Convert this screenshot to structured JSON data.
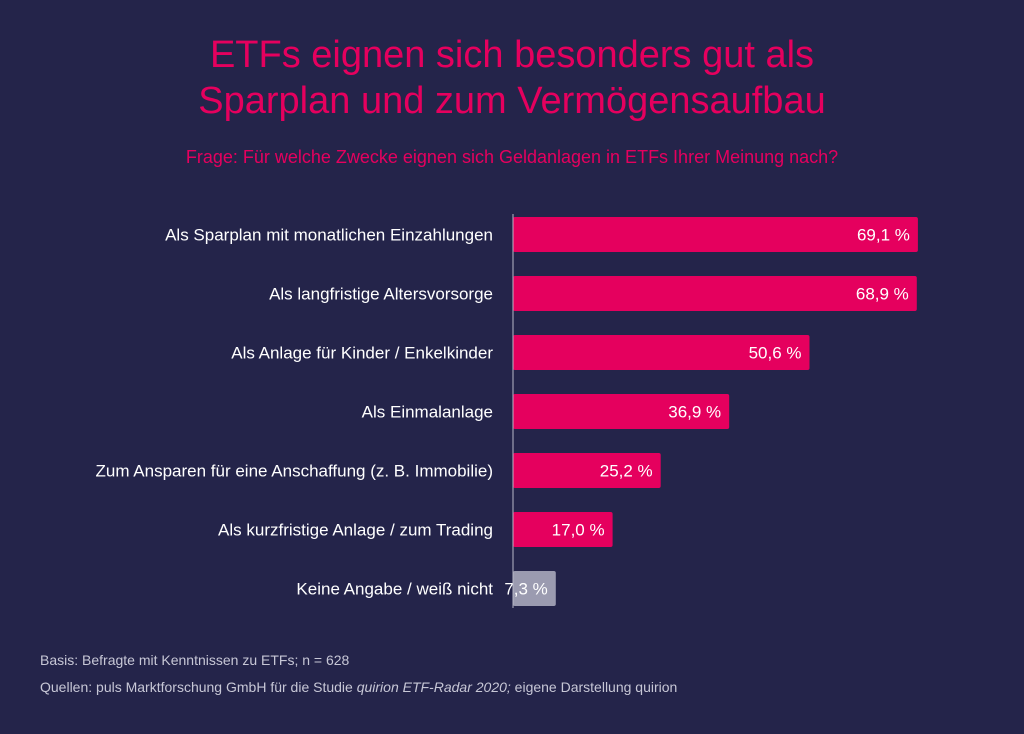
{
  "header": {
    "title_line1": "ETFs eignen sich besonders gut als",
    "title_line2": "Sparplan und zum Vermögensaufbau",
    "subtitle": "Frage: Für welche Zwecke eignen sich Geldanlagen in ETFs Ihrer Meinung nach?"
  },
  "colors": {
    "background": "#24244a",
    "accent": "#e5005e",
    "neutral_bar": "#9b9bb0",
    "text": "#ffffff"
  },
  "chart_data": {
    "type": "bar",
    "orientation": "horizontal",
    "title": "ETFs eignen sich besonders gut als Sparplan und zum Vermögensaufbau",
    "subtitle": "Frage: Für welche Zwecke eignen sich Geldanlagen in ETFs Ihrer Meinung nach?",
    "categories": [
      "Als Sparplan mit monatlichen Einzahlungen",
      "Als langfristige Altersvorsorge",
      "Als Anlage für Kinder / Enkelkinder",
      "Als Einmalanlage",
      "Zum Ansparen für eine Anschaffung (z. B. Immobilie)",
      "Als kurzfristige Anlage / zum Trading",
      "Keine Angabe / weiß nicht"
    ],
    "values": [
      69.1,
      68.9,
      50.6,
      36.9,
      25.2,
      17.0,
      7.3
    ],
    "value_labels": [
      "69,1 %",
      "68,9 %",
      "50,6 %",
      "36,9 %",
      "25,2 %",
      "17,0 %",
      "7,3 %"
    ],
    "bar_colors": [
      "#e5005e",
      "#e5005e",
      "#e5005e",
      "#e5005e",
      "#e5005e",
      "#e5005e",
      "#9b9bb0"
    ],
    "xlim": [
      0,
      100
    ],
    "grid": false,
    "legend": "none"
  },
  "footer": {
    "basis": "Basis: Befragte mit Kenntnissen zu ETFs; n = 628",
    "sources_prefix": "Quellen: puls Marktforschung GmbH für die Studie ",
    "sources_study": "quirion ETF-Radar 2020;",
    "sources_suffix": " eigene Darstellung quirion"
  }
}
